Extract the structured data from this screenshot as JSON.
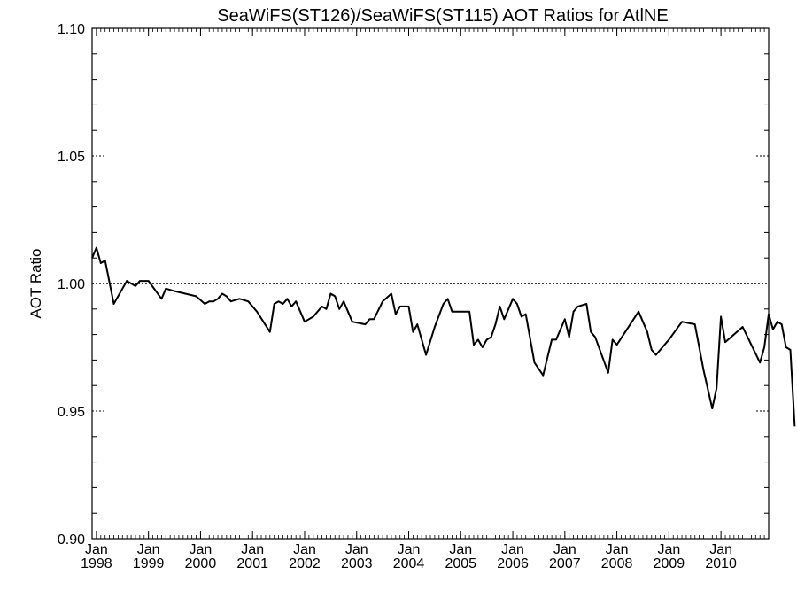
{
  "chart_data": {
    "type": "line",
    "title": "SeaWiFS(ST126)/SeaWiFS(ST115)  AOT Ratios for AtlNE",
    "xlabel": "",
    "ylabel": "AOT Ratio",
    "ylim": [
      0.9,
      1.1
    ],
    "y_ticks": [
      "0.90",
      "0.95",
      "1.00",
      "1.05",
      "1.10"
    ],
    "xlim": [
      "1997-12",
      "2010-12"
    ],
    "x_tick_labels": [
      {
        "month": "Jan",
        "year": "1998"
      },
      {
        "month": "Jan",
        "year": "1999"
      },
      {
        "month": "Jan",
        "year": "2000"
      },
      {
        "month": "Jan",
        "year": "2001"
      },
      {
        "month": "Jan",
        "year": "2002"
      },
      {
        "month": "Jan",
        "year": "2003"
      },
      {
        "month": "Jan",
        "year": "2004"
      },
      {
        "month": "Jan",
        "year": "2005"
      },
      {
        "month": "Jan",
        "year": "2006"
      },
      {
        "month": "Jan",
        "year": "2007"
      },
      {
        "month": "Jan",
        "year": "2008"
      },
      {
        "month": "Jan",
        "year": "2009"
      },
      {
        "month": "Jan",
        "year": "2010"
      }
    ],
    "reference_line": 1.0,
    "grid": false,
    "series": [
      {
        "points": [
          [
            "1997-12",
            1.01
          ],
          [
            "1998-01",
            1.014
          ],
          [
            "1998-02",
            1.008
          ],
          [
            "1998-03",
            1.009
          ],
          [
            "1998-05",
            0.992
          ],
          [
            "1998-08",
            1.001
          ],
          [
            "1998-10",
            0.999
          ],
          [
            "1998-11",
            1.001
          ],
          [
            "1999-01",
            1.001
          ],
          [
            "1999-04",
            0.994
          ],
          [
            "1999-05",
            0.998
          ],
          [
            "1999-07",
            0.997
          ],
          [
            "1999-12",
            0.995
          ],
          [
            "2000-02",
            0.992
          ],
          [
            "2000-03",
            0.993
          ],
          [
            "2000-04",
            0.993
          ],
          [
            "2000-05",
            0.994
          ],
          [
            "2000-06",
            0.996
          ],
          [
            "2000-07",
            0.995
          ],
          [
            "2000-08",
            0.993
          ],
          [
            "2000-10",
            0.994
          ],
          [
            "2000-12",
            0.993
          ],
          [
            "2001-02",
            0.989
          ],
          [
            "2001-05",
            0.981
          ],
          [
            "2001-06",
            0.992
          ],
          [
            "2001-07",
            0.993
          ],
          [
            "2001-08",
            0.992
          ],
          [
            "2001-09",
            0.994
          ],
          [
            "2001-10",
            0.991
          ],
          [
            "2001-11",
            0.993
          ],
          [
            "2002-01",
            0.985
          ],
          [
            "2002-03",
            0.987
          ],
          [
            "2002-05",
            0.991
          ],
          [
            "2002-06",
            0.99
          ],
          [
            "2002-07",
            0.996
          ],
          [
            "2002-08",
            0.995
          ],
          [
            "2002-09",
            0.99
          ],
          [
            "2002-10",
            0.993
          ],
          [
            "2002-12",
            0.985
          ],
          [
            "2003-03",
            0.984
          ],
          [
            "2003-04",
            0.986
          ],
          [
            "2003-05",
            0.986
          ],
          [
            "2003-07",
            0.993
          ],
          [
            "2003-09",
            0.996
          ],
          [
            "2003-10",
            0.988
          ],
          [
            "2003-11",
            0.991
          ],
          [
            "2004-01",
            0.991
          ],
          [
            "2004-02",
            0.981
          ],
          [
            "2004-03",
            0.984
          ],
          [
            "2004-05",
            0.972
          ],
          [
            "2004-07",
            0.983
          ],
          [
            "2004-09",
            0.992
          ],
          [
            "2004-10",
            0.994
          ],
          [
            "2004-11",
            0.989
          ],
          [
            "2005-01",
            0.989
          ],
          [
            "2005-03",
            0.989
          ],
          [
            "2005-04",
            0.976
          ],
          [
            "2005-05",
            0.978
          ],
          [
            "2005-06",
            0.975
          ],
          [
            "2005-07",
            0.978
          ],
          [
            "2005-08",
            0.979
          ],
          [
            "2005-09",
            0.984
          ],
          [
            "2005-10",
            0.991
          ],
          [
            "2005-11",
            0.986
          ],
          [
            "2006-01",
            0.994
          ],
          [
            "2006-02",
            0.992
          ],
          [
            "2006-03",
            0.987
          ],
          [
            "2006-04",
            0.988
          ],
          [
            "2006-06",
            0.969
          ],
          [
            "2006-08",
            0.964
          ],
          [
            "2006-10",
            0.978
          ],
          [
            "2006-11",
            0.978
          ],
          [
            "2007-01",
            0.986
          ],
          [
            "2007-02",
            0.979
          ],
          [
            "2007-03",
            0.989
          ],
          [
            "2007-04",
            0.991
          ],
          [
            "2007-06",
            0.992
          ],
          [
            "2007-07",
            0.981
          ],
          [
            "2007-08",
            0.979
          ],
          [
            "2007-11",
            0.965
          ],
          [
            "2007-12",
            0.978
          ],
          [
            "2008-01",
            0.976
          ],
          [
            "2008-06",
            0.989
          ],
          [
            "2008-08",
            0.981
          ],
          [
            "2008-09",
            0.974
          ],
          [
            "2008-10",
            0.972
          ],
          [
            "2009-01",
            0.978
          ],
          [
            "2009-04",
            0.985
          ],
          [
            "2009-07",
            0.984
          ],
          [
            "2009-09",
            0.966
          ],
          [
            "2009-11",
            0.951
          ],
          [
            "2009-12",
            0.959
          ],
          [
            "2010-01",
            0.987
          ],
          [
            "2010-02",
            0.977
          ],
          [
            "2010-06",
            0.983
          ],
          [
            "2010-10",
            0.969
          ],
          [
            "2010-11",
            0.975
          ],
          [
            "2011-00",
            0.988
          ],
          [
            "2011-01",
            0.982
          ],
          [
            "2011-02",
            0.985
          ],
          [
            "2011-03",
            0.984
          ],
          [
            "2011-04",
            0.975
          ],
          [
            "2011-05",
            0.974
          ],
          [
            "2011-06",
            0.944
          ]
        ]
      }
    ]
  }
}
